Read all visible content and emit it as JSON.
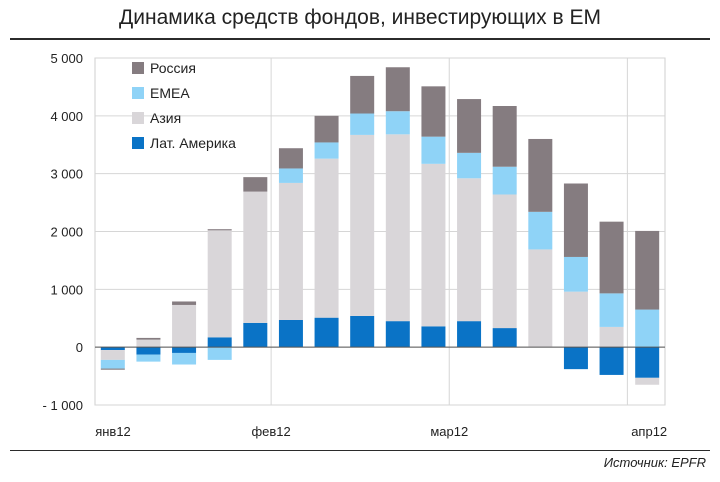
{
  "title": "Динамика средств фондов, инвестирующих в ЕМ",
  "source": "Источник: EPFR",
  "chart_data": {
    "type": "bar",
    "stacked": true,
    "title": "Динамика средств фондов, инвестирующих в ЕМ",
    "xlabel": "",
    "ylabel": "",
    "ylim": [
      -1000,
      5000
    ],
    "yticks": [
      -1000,
      0,
      1000,
      2000,
      3000,
      4000,
      5000
    ],
    "ytick_labels": [
      "- 1 000",
      "0",
      "1 000",
      "2 000",
      "3 000",
      "4 000",
      "5 000"
    ],
    "x_tick_labels": [
      {
        "label": "янв12",
        "bar": 0
      },
      {
        "label": "фев12",
        "bar": 5
      },
      {
        "label": "мар12",
        "bar": 10
      },
      {
        "label": "апр12",
        "bar": 15
      }
    ],
    "grid": true,
    "legend_position": "top-left",
    "bars": 16,
    "series": [
      {
        "name": "Лат. Америка",
        "color": "#0a73c6",
        "values": [
          -50,
          -130,
          -100,
          170,
          420,
          470,
          510,
          540,
          450,
          360,
          450,
          330,
          0,
          -380,
          -480,
          -530
        ]
      },
      {
        "name": "Азия",
        "color": "#d9d6d9",
        "values": [
          -170,
          130,
          730,
          1850,
          2270,
          2370,
          2750,
          3130,
          3230,
          2810,
          2470,
          2310,
          1690,
          960,
          350,
          -120
        ]
      },
      {
        "name": "EMEA",
        "color": "#8fd3f7",
        "values": [
          -150,
          -120,
          -200,
          -220,
          0,
          250,
          280,
          370,
          400,
          470,
          440,
          480,
          650,
          600,
          580,
          650
        ]
      },
      {
        "name": "Россия",
        "color": "#857c80",
        "values": [
          -20,
          30,
          60,
          20,
          250,
          350,
          460,
          650,
          760,
          870,
          930,
          1050,
          1260,
          1270,
          1240,
          1360
        ]
      }
    ]
  }
}
